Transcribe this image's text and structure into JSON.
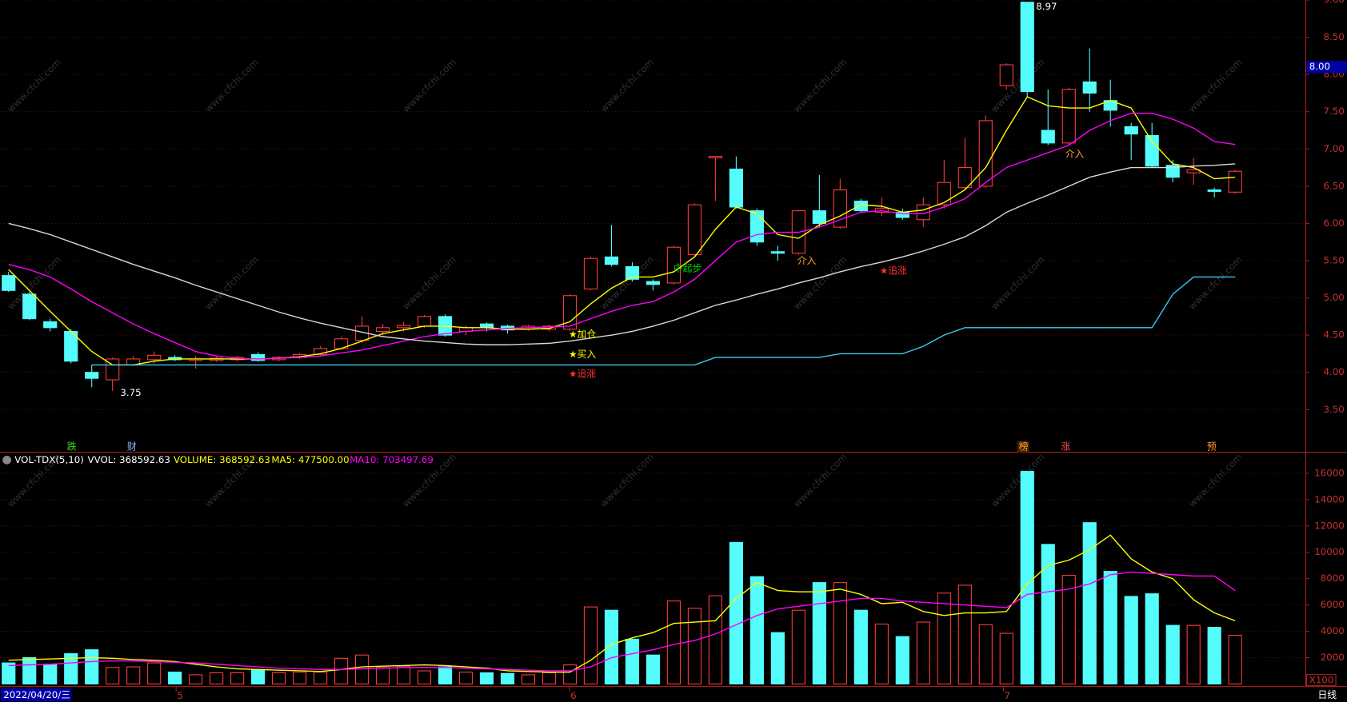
{
  "watermark": "www.cfchi.com",
  "chart_data": [
    {
      "type": "candlestick",
      "up_color": "#ff3c3c",
      "down_color": "#54fcfc",
      "open": [
        5.3,
        5.05,
        4.68,
        4.55,
        4.0,
        3.9,
        4.1,
        4.17,
        4.2,
        4.16,
        4.16,
        4.17,
        4.24,
        4.17,
        4.2,
        4.24,
        4.32,
        4.43,
        4.55,
        4.6,
        4.62,
        4.75,
        4.55,
        4.65,
        4.62,
        4.58,
        4.58,
        4.58,
        5.12,
        5.55,
        5.42,
        5.22,
        5.2,
        5.58,
        6.88,
        6.73,
        6.17,
        5.62,
        5.6,
        6.17,
        5.95,
        6.3,
        6.15,
        6.15,
        6.05,
        6.25,
        6.48,
        6.5,
        7.85,
        8.97,
        7.25,
        7.08,
        7.9,
        7.65,
        7.3,
        7.18,
        6.78,
        6.68,
        6.45,
        6.42
      ],
      "high": [
        5.35,
        5.08,
        4.72,
        4.58,
        4.1,
        4.2,
        4.22,
        4.28,
        4.23,
        4.22,
        4.21,
        4.22,
        4.27,
        4.22,
        4.26,
        4.35,
        4.48,
        4.75,
        4.65,
        4.68,
        4.77,
        4.78,
        4.63,
        4.67,
        4.64,
        4.64,
        4.64,
        5.05,
        5.55,
        5.98,
        5.48,
        5.25,
        5.7,
        6.27,
        6.9,
        6.9,
        6.2,
        5.7,
        6.18,
        6.65,
        6.6,
        6.33,
        6.35,
        6.2,
        6.35,
        6.85,
        7.15,
        7.45,
        8.15,
        8.97,
        7.8,
        7.82,
        8.35,
        7.93,
        7.35,
        7.35,
        6.85,
        6.88,
        6.48,
        6.72
      ],
      "low": [
        5.08,
        4.7,
        4.55,
        4.12,
        3.8,
        3.75,
        4.08,
        4.12,
        4.15,
        4.05,
        4.14,
        4.15,
        4.14,
        4.15,
        4.18,
        4.22,
        4.3,
        4.4,
        4.5,
        4.55,
        4.6,
        4.48,
        4.5,
        4.55,
        4.52,
        4.56,
        4.55,
        4.56,
        5.1,
        5.42,
        5.22,
        5.1,
        5.18,
        5.55,
        6.3,
        6.2,
        5.7,
        5.5,
        5.58,
        5.95,
        5.93,
        6.15,
        6.1,
        6.05,
        5.95,
        6.2,
        6.45,
        6.48,
        7.8,
        7.7,
        7.05,
        7.05,
        7.5,
        7.3,
        6.85,
        6.75,
        6.55,
        6.52,
        6.35,
        6.4
      ],
      "close": [
        5.1,
        4.72,
        4.6,
        4.15,
        3.92,
        4.18,
        4.18,
        4.23,
        4.17,
        4.18,
        4.19,
        4.2,
        4.16,
        4.2,
        4.24,
        4.32,
        4.45,
        4.62,
        4.6,
        4.63,
        4.75,
        4.5,
        4.6,
        4.6,
        4.57,
        4.62,
        4.62,
        5.03,
        5.53,
        5.45,
        5.25,
        5.18,
        5.68,
        6.25,
        6.9,
        6.22,
        5.75,
        5.6,
        6.17,
        6.0,
        6.45,
        6.17,
        6.2,
        6.08,
        6.25,
        6.55,
        6.75,
        7.38,
        8.13,
        7.77,
        7.08,
        7.8,
        7.75,
        7.52,
        7.2,
        6.77,
        6.62,
        6.72,
        6.43,
        6.7
      ],
      "lines": [
        {
          "color": "#ffff00",
          "values": [
            5.38,
            5.1,
            4.82,
            4.55,
            4.28,
            4.1,
            4.1,
            4.15,
            4.18,
            4.18,
            4.18,
            4.18,
            4.18,
            4.19,
            4.21,
            4.25,
            4.32,
            4.42,
            4.52,
            4.57,
            4.62,
            4.62,
            4.6,
            4.6,
            4.58,
            4.58,
            4.59,
            4.68,
            4.92,
            5.13,
            5.28,
            5.28,
            5.35,
            5.55,
            5.92,
            6.22,
            6.13,
            5.85,
            5.8,
            5.98,
            6.1,
            6.25,
            6.23,
            6.15,
            6.18,
            6.28,
            6.45,
            6.75,
            7.25,
            7.7,
            7.58,
            7.55,
            7.55,
            7.65,
            7.55,
            7.1,
            6.8,
            6.75,
            6.6,
            6.62
          ]
        },
        {
          "color": "#ff00ff",
          "values": [
            5.45,
            5.38,
            5.28,
            5.12,
            4.95,
            4.8,
            4.65,
            4.52,
            4.4,
            4.28,
            4.22,
            4.19,
            4.18,
            4.19,
            4.2,
            4.22,
            4.26,
            4.3,
            4.36,
            4.42,
            4.48,
            4.52,
            4.55,
            4.57,
            4.59,
            4.6,
            4.61,
            4.62,
            4.72,
            4.82,
            4.9,
            4.95,
            5.08,
            5.25,
            5.5,
            5.75,
            5.85,
            5.88,
            5.88,
            5.95,
            6.05,
            6.15,
            6.17,
            6.13,
            6.13,
            6.22,
            6.33,
            6.55,
            6.75,
            6.85,
            6.95,
            7.05,
            7.25,
            7.38,
            7.48,
            7.48,
            7.4,
            7.28,
            7.1,
            7.06
          ]
        },
        {
          "color": "#d8d8d8",
          "values": [
            6.0,
            5.93,
            5.85,
            5.75,
            5.65,
            5.55,
            5.45,
            5.36,
            5.27,
            5.17,
            5.08,
            4.99,
            4.9,
            4.81,
            4.73,
            4.66,
            4.6,
            4.54,
            4.48,
            4.45,
            4.42,
            4.4,
            4.38,
            4.37,
            4.37,
            4.38,
            4.39,
            4.42,
            4.46,
            4.5,
            4.55,
            4.62,
            4.7,
            4.8,
            4.9,
            4.97,
            5.05,
            5.12,
            5.2,
            5.27,
            5.35,
            5.42,
            5.48,
            5.55,
            5.63,
            5.72,
            5.82,
            5.97,
            6.15,
            6.27,
            6.38,
            6.5,
            6.62,
            6.69,
            6.75,
            6.75,
            6.75,
            6.77,
            6.78,
            6.8
          ]
        },
        {
          "color": "#3cc8f0",
          "values": [
            null,
            null,
            null,
            null,
            4.1,
            4.1,
            4.1,
            4.1,
            4.1,
            4.1,
            4.1,
            4.1,
            4.1,
            4.1,
            4.1,
            4.1,
            4.1,
            4.1,
            4.1,
            4.1,
            4.1,
            4.1,
            4.1,
            4.1,
            4.1,
            4.1,
            4.1,
            4.1,
            4.1,
            4.1,
            4.1,
            4.1,
            4.1,
            4.1,
            4.2,
            4.2,
            4.2,
            4.2,
            4.2,
            4.2,
            4.25,
            4.25,
            4.25,
            4.25,
            4.35,
            4.5,
            4.6,
            4.6,
            4.6,
            4.6,
            4.6,
            4.6,
            4.6,
            4.6,
            4.6,
            4.6,
            5.05,
            5.28,
            5.28,
            5.28
          ]
        }
      ],
      "ylim": [
        2.95,
        9.0
      ],
      "yticks": [
        {
          "value": 3.5,
          "label": "3.50"
        },
        {
          "value": 4.0,
          "label": "4.00"
        },
        {
          "value": 4.5,
          "label": "4.50"
        },
        {
          "value": 5.0,
          "label": "5.00"
        },
        {
          "value": 5.5,
          "label": "5.50"
        },
        {
          "value": 6.0,
          "label": "6.00"
        },
        {
          "value": 6.5,
          "label": "6.50"
        },
        {
          "value": 7.0,
          "label": "7.00"
        },
        {
          "value": 7.5,
          "label": "7.50"
        },
        {
          "value": 8.0,
          "label": "8.00"
        },
        {
          "value": 8.5,
          "label": "8.50"
        },
        {
          "value": 9.0,
          "label": "9.00"
        }
      ],
      "grid": true,
      "annotations": {
        "high": "8.97",
        "low": "3.75",
        "add": "★加仓",
        "buy": "★买入",
        "chase1": "★追涨",
        "start": "中起步",
        "enter1": "介入",
        "enter2": "介入",
        "chase2": "★追涨",
        "price_box": "8.00"
      },
      "signals": {
        "s1": "跌",
        "s2": "财",
        "s3": "榜",
        "s4": "涨",
        "s5": "预"
      }
    },
    {
      "type": "bar",
      "legend": [
        "VOL-TDX(5,10)",
        "VVOL: 368592.63",
        "VOLUME: 368592.63",
        "MA5: 477500.00",
        "MA10: 703497.69"
      ],
      "values": [
        1600,
        2000,
        1500,
        2300,
        2600,
        1250,
        1300,
        1600,
        900,
        700,
        850,
        850,
        1100,
        850,
        900,
        900,
        1950,
        2200,
        1250,
        1350,
        1000,
        1300,
        900,
        850,
        800,
        700,
        850,
        1450,
        5850,
        5600,
        3400,
        2200,
        6300,
        5750,
        6700,
        10750,
        8150,
        3900,
        5600,
        7700,
        7700,
        5600,
        4550,
        3600,
        4700,
        6900,
        7500,
        4500,
        3850,
        16150,
        10600,
        8250,
        12250,
        8550,
        6650,
        6850,
        4450,
        4450,
        4300,
        3700
      ],
      "lines": [
        {
          "color": "#ffff00",
          "values": [
            1800,
            1850,
            1900,
            1950,
            2000,
            1950,
            1850,
            1800,
            1700,
            1500,
            1300,
            1150,
            1100,
            1050,
            1000,
            950,
            1100,
            1300,
            1350,
            1400,
            1450,
            1400,
            1300,
            1200,
            1000,
            950,
            900,
            900,
            1800,
            3000,
            3500,
            3900,
            4600,
            4700,
            4800,
            6500,
            7700,
            7100,
            7000,
            7000,
            7200,
            6800,
            6100,
            6200,
            5500,
            5200,
            5400,
            5400,
            5500,
            7600,
            9000,
            9400,
            10200,
            11300,
            9500,
            8500,
            8000,
            6400,
            5400,
            4800
          ]
        },
        {
          "color": "#ff00ff",
          "values": [
            1400,
            1450,
            1500,
            1600,
            1700,
            1750,
            1750,
            1700,
            1650,
            1600,
            1500,
            1400,
            1300,
            1200,
            1150,
            1100,
            1100,
            1150,
            1200,
            1250,
            1250,
            1250,
            1200,
            1150,
            1100,
            1050,
            1000,
            1000,
            1300,
            2000,
            2300,
            2600,
            3000,
            3300,
            3800,
            4500,
            5200,
            5700,
            5900,
            6100,
            6300,
            6500,
            6500,
            6300,
            6200,
            6100,
            6000,
            5900,
            5800,
            6800,
            7000,
            7200,
            7600,
            8300,
            8500,
            8400,
            8300,
            8200,
            8200,
            7100
          ]
        }
      ],
      "ylim": [
        0,
        17400
      ],
      "yticks": [
        2000,
        4000,
        6000,
        8000,
        10000,
        12000,
        14000,
        16000
      ],
      "grid": true,
      "unit": "X100",
      "period": "日线",
      "date": "2022/04/20/三",
      "x_labels": [
        "5",
        "6",
        "7"
      ]
    }
  ]
}
